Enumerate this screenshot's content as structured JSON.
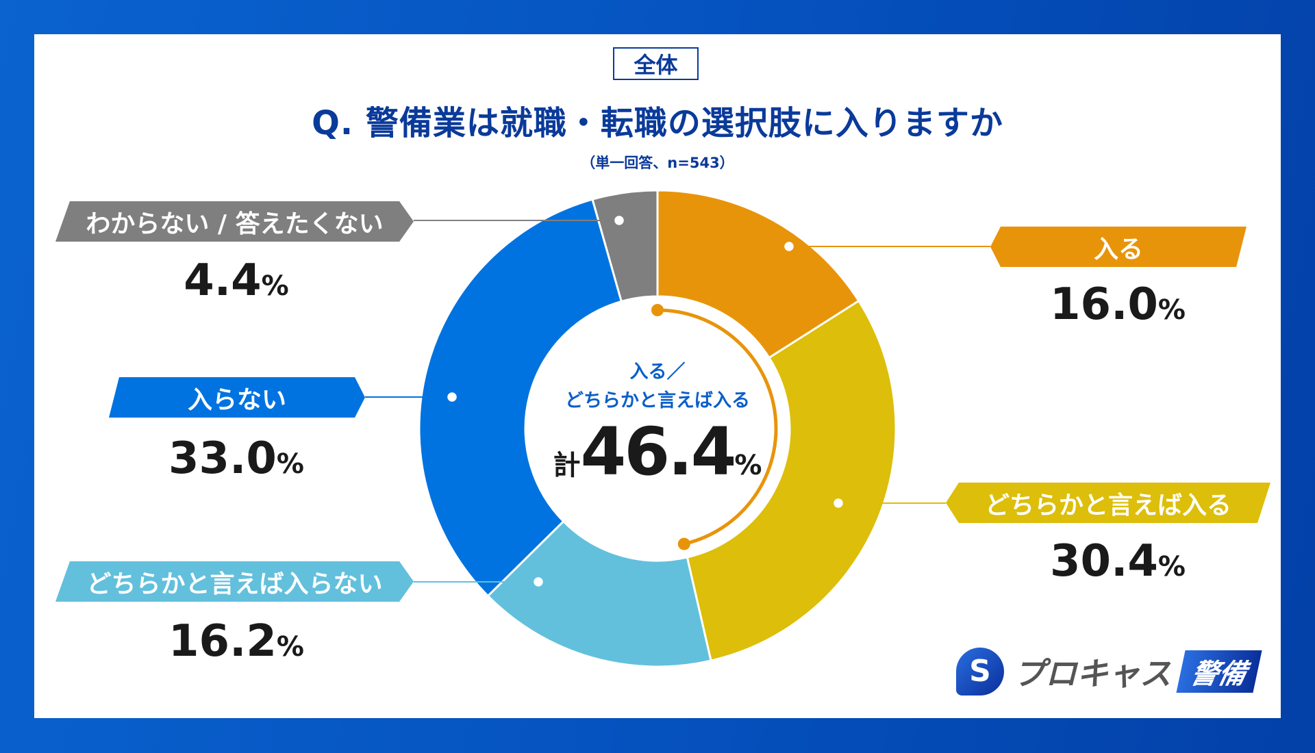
{
  "badge": "全体",
  "title": "Q. 警備業は就職・転職の選択肢に入りますか",
  "subtitle": "（単一回答、n=543）",
  "chart_data": {
    "type": "pie",
    "variant": "donut",
    "categories": [
      "入る",
      "どちらかと言えば入る",
      "どちらかと言えば入らない",
      "入らない",
      "わからない / 答えたくない"
    ],
    "values": [
      16.0,
      30.4,
      16.2,
      33.0,
      4.4
    ],
    "value_labels": [
      "16.0",
      "30.4",
      "16.2",
      "33.0",
      "4.4"
    ],
    "unit": "%",
    "colors": [
      "#E8940A",
      "#DDBE0A",
      "#62C0DC",
      "#0073E0",
      "#7F7F7F"
    ],
    "center_label": {
      "line1": "入る／",
      "line2": "どちらかと言えば入る",
      "prefix": "計",
      "total": "46.4",
      "unit": "%"
    },
    "highlight_arc_value": 46.4,
    "highlight_arc_color": "#E8940A"
  },
  "logo": {
    "mark": "S",
    "text": "プロキャス",
    "tag": "警備"
  }
}
